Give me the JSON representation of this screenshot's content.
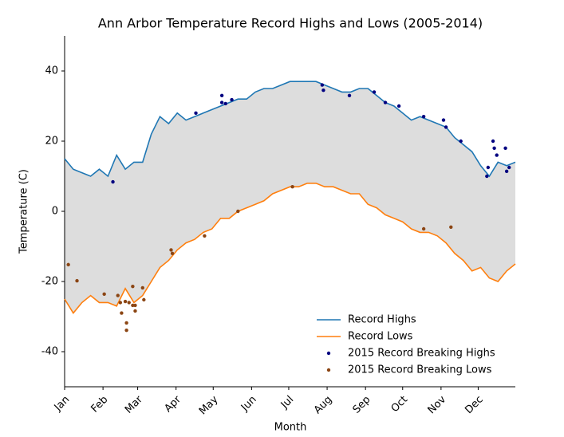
{
  "chart_data": {
    "type": "line",
    "title": "Ann Arbor Temperature Record Highs and Lows (2005-2014)",
    "x_label": "Month",
    "y_label": "Temperature (C)",
    "xlim": [
      0,
      364
    ],
    "ylim": [
      -50,
      50
    ],
    "xticks": [
      {
        "value": 0,
        "label": "Jan"
      },
      {
        "value": 31,
        "label": "Feb"
      },
      {
        "value": 59,
        "label": "Mar"
      },
      {
        "value": 90,
        "label": "Apr"
      },
      {
        "value": 120,
        "label": "May"
      },
      {
        "value": 151,
        "label": "Jun"
      },
      {
        "value": 181,
        "label": "Jul"
      },
      {
        "value": 212,
        "label": "Aug"
      },
      {
        "value": 243,
        "label": "Sep"
      },
      {
        "value": 273,
        "label": "Oct"
      },
      {
        "value": 304,
        "label": "Nov"
      },
      {
        "value": 334,
        "label": "Dec"
      }
    ],
    "yticks": [
      -40,
      -20,
      0,
      20,
      40
    ],
    "fill_color": "#dddddd",
    "legend": "lower right",
    "series": [
      {
        "name": "Record Highs",
        "kind": "line",
        "color": "#1f77b4",
        "x": [
          0,
          7,
          14,
          21,
          28,
          35,
          42,
          49,
          56,
          63,
          70,
          77,
          84,
          91,
          98,
          105,
          112,
          119,
          126,
          133,
          140,
          147,
          154,
          161,
          168,
          175,
          182,
          189,
          196,
          203,
          210,
          217,
          224,
          231,
          238,
          245,
          252,
          259,
          266,
          273,
          280,
          287,
          294,
          301,
          308,
          315,
          322,
          329,
          336,
          343,
          350,
          357,
          364
        ],
        "values": [
          15,
          12,
          11,
          10,
          12,
          10,
          16,
          12,
          14,
          14,
          22,
          27,
          25,
          28,
          26,
          27,
          28,
          29,
          30,
          31,
          32,
          32,
          34,
          35,
          35,
          36,
          37,
          37,
          37,
          37,
          36,
          35,
          34,
          34,
          35,
          35,
          33,
          31,
          30,
          28,
          26,
          27,
          26,
          25,
          24,
          21,
          19,
          17,
          13,
          10,
          14,
          13,
          14
        ]
      },
      {
        "name": "Record Lows",
        "kind": "line",
        "color": "#ff7f0e",
        "x": [
          0,
          7,
          14,
          21,
          28,
          35,
          42,
          49,
          56,
          63,
          70,
          77,
          84,
          91,
          98,
          105,
          112,
          119,
          126,
          133,
          140,
          147,
          154,
          161,
          168,
          175,
          182,
          189,
          196,
          203,
          210,
          217,
          224,
          231,
          238,
          245,
          252,
          259,
          266,
          273,
          280,
          287,
          294,
          301,
          308,
          315,
          322,
          329,
          336,
          343,
          350,
          357,
          364
        ],
        "values": [
          -25,
          -29,
          -26,
          -24,
          -26,
          -26,
          -27,
          -22,
          -26,
          -24,
          -20,
          -16,
          -14,
          -11,
          -9,
          -8,
          -6,
          -5,
          -2,
          -2,
          0,
          1,
          2,
          3,
          5,
          6,
          7,
          7,
          8,
          8,
          7,
          7,
          6,
          5,
          5,
          2,
          1,
          -1,
          -2,
          -3,
          -5,
          -6,
          -6,
          -7,
          -9,
          -12,
          -14,
          -17,
          -16,
          -19,
          -20,
          -17,
          -15
        ]
      },
      {
        "name": "2015 Record Breaking Highs",
        "kind": "scatter",
        "color": "#000080",
        "x": [
          39,
          106,
          127,
          127,
          130,
          135,
          208,
          209,
          230,
          250,
          259,
          270,
          290,
          306,
          308,
          320,
          341,
          342,
          346,
          347,
          349,
          356,
          357,
          359
        ],
        "values": [
          8.4,
          28,
          33,
          31,
          30.7,
          31.8,
          36,
          34.5,
          33,
          34,
          31,
          30,
          27,
          26,
          24,
          20,
          10,
          12.5,
          20,
          18,
          16,
          18,
          11.4,
          12.5
        ]
      },
      {
        "name": "2015 Record Breaking Lows",
        "kind": "scatter",
        "color": "#8b4513",
        "x": [
          3,
          10,
          32,
          43,
          45,
          46,
          49,
          50,
          50,
          52,
          55,
          55,
          57,
          57,
          63,
          64,
          86,
          87,
          113,
          140,
          184,
          290,
          312
        ],
        "values": [
          -15.2,
          -19.8,
          -23.6,
          -24,
          -26,
          -29,
          -25.7,
          -31.8,
          -33.9,
          -26,
          -26.8,
          -21.4,
          -26.8,
          -28.4,
          -21.8,
          -25.2,
          -11,
          -12,
          -7,
          0,
          7,
          -5,
          -4.5
        ]
      }
    ]
  }
}
